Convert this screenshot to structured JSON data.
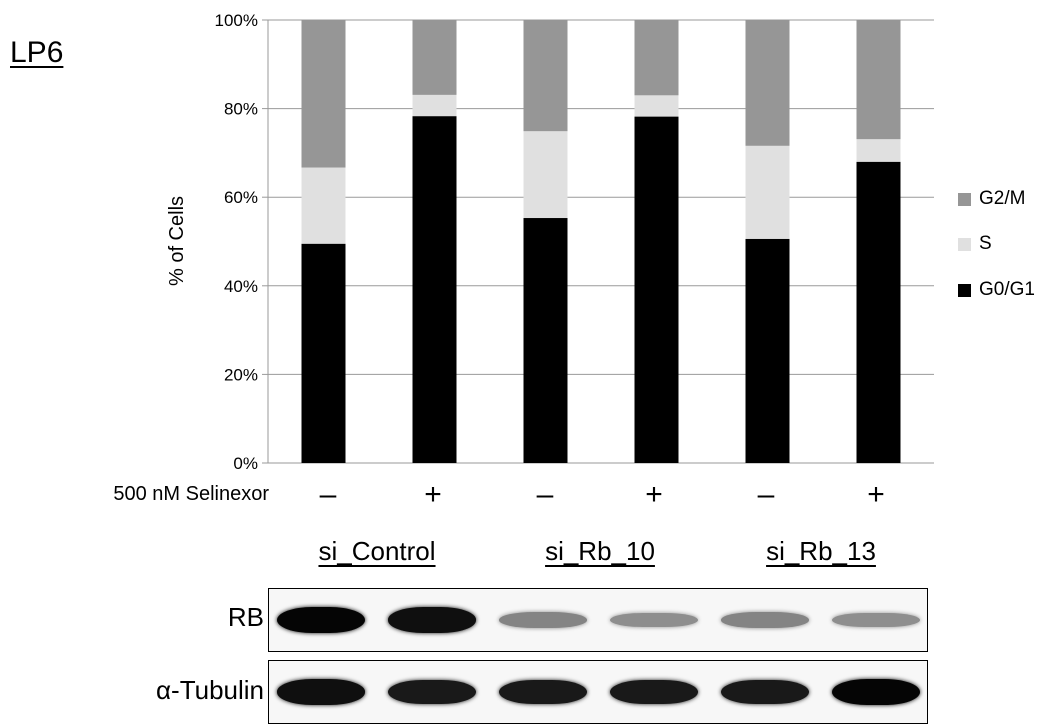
{
  "panel_label": "LP6",
  "chart_data": {
    "type": "bar",
    "stacked": true,
    "categories": [
      "–",
      "+",
      "–",
      "+",
      "–",
      "+"
    ],
    "series": [
      {
        "name": "G0/G1",
        "color": "#000000",
        "values": [
          49.5,
          78.3,
          55.3,
          78.2,
          50.6,
          68.0
        ]
      },
      {
        "name": "S",
        "color": "#e0e0e0",
        "values": [
          17.2,
          4.8,
          19.6,
          4.8,
          21.0,
          5.1
        ]
      },
      {
        "name": "G2/M",
        "color": "#969696",
        "values": [
          33.3,
          16.9,
          25.1,
          17.0,
          28.4,
          26.9
        ]
      }
    ],
    "ylabel": "% of Cells",
    "yticks": [
      "0%",
      "20%",
      "40%",
      "60%",
      "80%",
      "100%"
    ],
    "ylim": [
      0,
      100
    ],
    "grid": true,
    "legend_position": "right",
    "legend_order": [
      "G2/M",
      "S",
      "G0/G1"
    ]
  },
  "treatment_label": "500 nM Selinexor",
  "treatment_signs": [
    "–",
    "+",
    "–",
    "+",
    "–",
    "+"
  ],
  "groups": [
    "si_Control",
    "si_Rb_10",
    "si_Rb_13"
  ],
  "blots": [
    {
      "label": "RB",
      "band_intensity": [
        1.0,
        0.95,
        0.35,
        0.3,
        0.35,
        0.3
      ]
    },
    {
      "label": "α-Tubulin",
      "band_intensity": [
        0.95,
        0.9,
        0.9,
        0.9,
        0.9,
        1.0
      ]
    }
  ]
}
